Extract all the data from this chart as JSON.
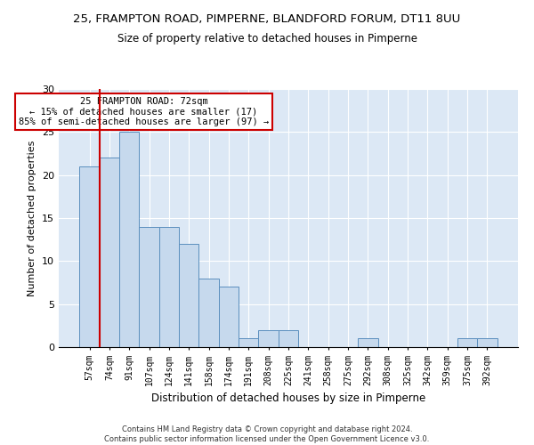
{
  "title1": "25, FRAMPTON ROAD, PIMPERNE, BLANDFORD FORUM, DT11 8UU",
  "title2": "Size of property relative to detached houses in Pimperne",
  "xlabel": "Distribution of detached houses by size in Pimperne",
  "ylabel": "Number of detached properties",
  "bin_labels": [
    "57sqm",
    "74sqm",
    "91sqm",
    "107sqm",
    "124sqm",
    "141sqm",
    "158sqm",
    "174sqm",
    "191sqm",
    "208sqm",
    "225sqm",
    "241sqm",
    "258sqm",
    "275sqm",
    "292sqm",
    "308sqm",
    "325sqm",
    "342sqm",
    "359sqm",
    "375sqm",
    "392sqm"
  ],
  "bar_values": [
    21,
    22,
    25,
    14,
    14,
    12,
    8,
    7,
    1,
    2,
    2,
    0,
    0,
    0,
    1,
    0,
    0,
    0,
    0,
    1,
    1
  ],
  "bar_color": "#c6d9ed",
  "bar_edge_color": "#5b8fbe",
  "vline_color": "#cc0000",
  "vline_x_pos": 0.5,
  "annotation_title": "25 FRAMPTON ROAD: 72sqm",
  "annotation_line1": "← 15% of detached houses are smaller (17)",
  "annotation_line2": "85% of semi-detached houses are larger (97) →",
  "annotation_box_color": "white",
  "annotation_box_edge": "#cc0000",
  "footer1": "Contains HM Land Registry data © Crown copyright and database right 2024.",
  "footer2": "Contains public sector information licensed under the Open Government Licence v3.0.",
  "ylim": [
    0,
    30
  ],
  "yticks": [
    0,
    5,
    10,
    15,
    20,
    25,
    30
  ],
  "background_color": "#dce8f5"
}
